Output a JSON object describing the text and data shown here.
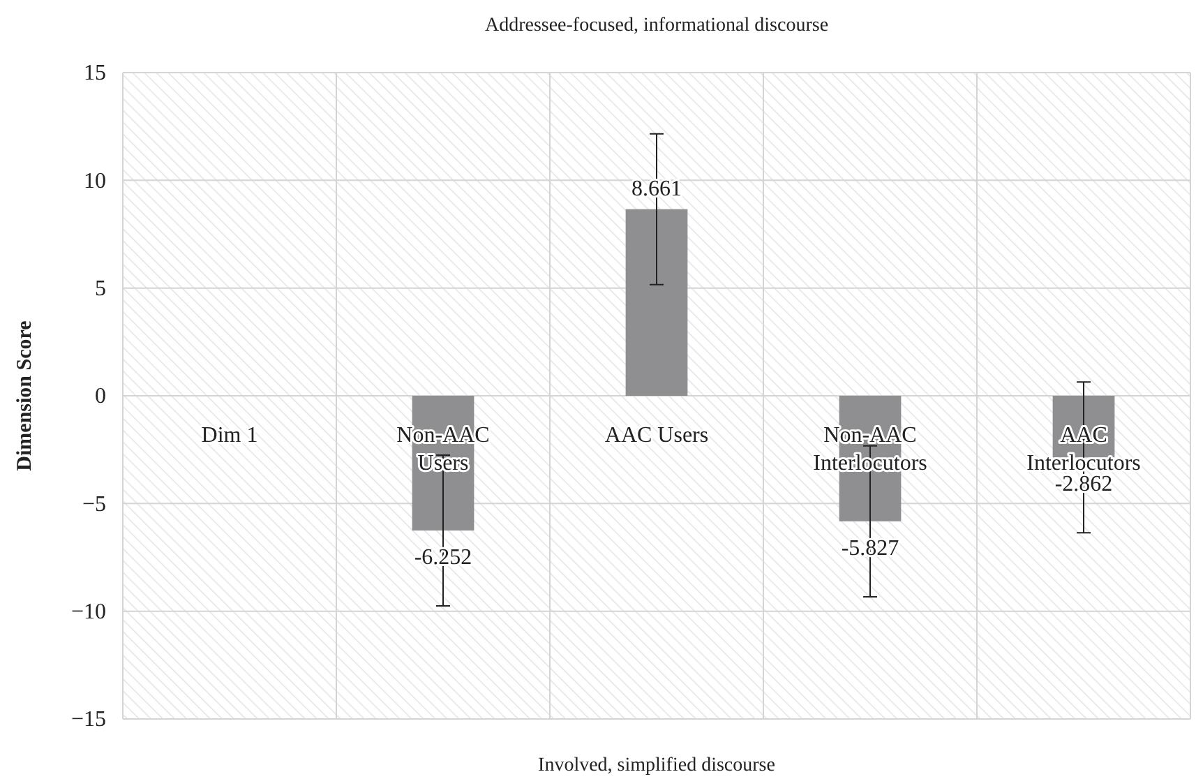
{
  "chart_data": {
    "type": "bar",
    "title": "Addressee-focused, informational discourse",
    "xlabel": "Involved, simplified discourse",
    "ylabel": "Dimension Score",
    "categories": [
      "Dim 1",
      "Non-AAC Users",
      "AAC Users",
      "Non-AAC Interlocutors",
      "AAC Interlocutors"
    ],
    "values": [
      null,
      -6.252,
      8.661,
      -5.827,
      -2.862
    ],
    "errors": [
      null,
      3.5,
      3.5,
      3.5,
      3.5
    ],
    "color": "#8f8f91",
    "data_labels": true,
    "grid": true,
    "ylim": [
      -15,
      15
    ],
    "yticks": [
      {
        "value": -15,
        "label": "−15"
      },
      {
        "value": -10,
        "label": "−10"
      },
      {
        "value": -5,
        "label": "−5"
      },
      0,
      5,
      10,
      15
    ]
  }
}
